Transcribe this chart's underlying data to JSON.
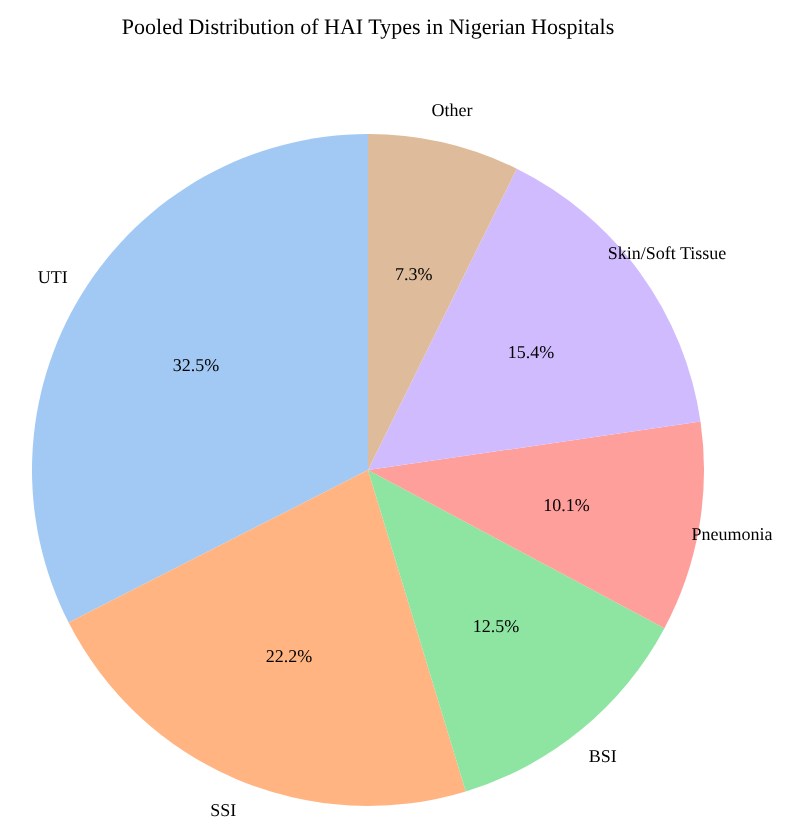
{
  "chart_data": {
    "type": "pie",
    "title": "Pooled Distribution of HAI Types in Nigerian Hospitals",
    "categories": [
      "UTI",
      "SSI",
      "BSI",
      "Pneumonia",
      "Skin/Soft Tissue",
      "Other"
    ],
    "values": [
      32.5,
      22.2,
      12.5,
      10.1,
      15.4,
      7.3
    ],
    "colors": [
      "#a1c9f4",
      "#ffb482",
      "#8de5a1",
      "#ff9f9b",
      "#d0bbff",
      "#debb9b"
    ],
    "value_labels": [
      "32.5%",
      "22.2%",
      "12.5%",
      "10.1%",
      "15.4%",
      "7.3%"
    ],
    "legend": false
  }
}
